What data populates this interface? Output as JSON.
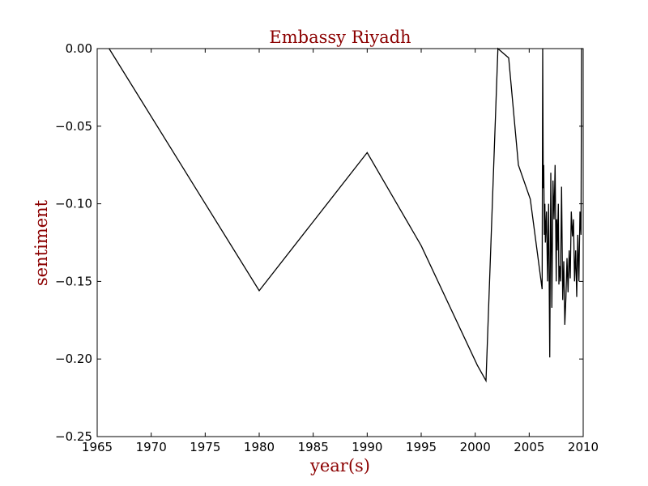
{
  "colors": {
    "accent": "#8b0000",
    "line": "#000000",
    "background": "#ffffff"
  },
  "chart_data": {
    "type": "line",
    "title": "Embassy Riyadh",
    "xlabel": "year(s)",
    "ylabel": "sentiment",
    "xlim": [
      1965,
      2010
    ],
    "ylim": [
      -0.25,
      0.0
    ],
    "grid": false,
    "x_ticks": [
      1965,
      1970,
      1975,
      1980,
      1985,
      1990,
      1995,
      2000,
      2005,
      2010
    ],
    "x_tick_labels": [
      "1965",
      "1970",
      "1975",
      "1980",
      "1985",
      "1990",
      "1995",
      "2000",
      "2005",
      "2010"
    ],
    "y_ticks": [
      0.0,
      -0.05,
      -0.1,
      -0.15,
      -0.2,
      -0.25
    ],
    "y_tick_labels": [
      "0.00",
      "−0.05",
      "−0.10",
      "−0.15",
      "−0.20",
      "−0.25"
    ],
    "series": [
      {
        "x": [
          1966.1,
          1980.0,
          1990.0,
          1995.0,
          2000.2,
          2001.0,
          2002.1,
          2003.1,
          2004.0,
          2005.1,
          2006.2,
          2006.25,
          2006.3,
          2006.35,
          2006.4,
          2006.45,
          2006.5,
          2006.6,
          2006.7,
          2006.8,
          2006.9,
          2007.0,
          2007.1,
          2007.2,
          2007.3,
          2007.4,
          2007.5,
          2007.55,
          2007.6,
          2007.7,
          2007.75,
          2007.8,
          2007.9,
          2008.0,
          2008.1,
          2008.2,
          2008.3,
          2008.4,
          2008.5,
          2008.6,
          2008.7,
          2008.8,
          2008.9,
          2009.0,
          2009.1,
          2009.2,
          2009.3,
          2009.4,
          2009.5,
          2009.6,
          2009.7,
          2009.8,
          2009.85,
          2009.9
        ],
        "y": [
          0.0,
          -0.156,
          -0.067,
          -0.127,
          -0.204,
          -0.214,
          0.0,
          -0.006,
          -0.075,
          -0.097,
          -0.155,
          0.0,
          -0.09,
          -0.075,
          -0.12,
          -0.1,
          -0.125,
          -0.105,
          -0.15,
          -0.1,
          -0.199,
          -0.08,
          -0.167,
          -0.085,
          -0.11,
          -0.075,
          -0.15,
          -0.11,
          -0.13,
          -0.1,
          -0.152,
          -0.14,
          -0.15,
          -0.089,
          -0.162,
          -0.137,
          -0.178,
          -0.16,
          -0.135,
          -0.157,
          -0.13,
          -0.148,
          -0.105,
          -0.121,
          -0.11,
          -0.15,
          -0.13,
          -0.16,
          -0.12,
          -0.15,
          -0.105,
          -0.12,
          0.0,
          0.0
        ]
      }
    ]
  }
}
